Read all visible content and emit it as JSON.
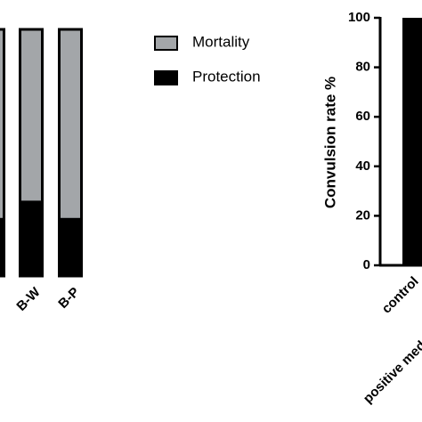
{
  "chart_data": [
    {
      "type": "stacked_bar",
      "categories": [
        null,
        "B-W",
        "B-P"
      ],
      "series": [
        {
          "name": "Protection",
          "color": "#000000",
          "values": [
            23,
            30,
            23
          ]
        },
        {
          "name": "Mortality",
          "color": "#a3a6a9",
          "values": [
            77,
            70,
            77
          ]
        }
      ],
      "ylim": [
        0,
        100
      ]
    },
    {
      "type": "bar",
      "y_label": "Convulsion rate %",
      "categories": [
        "control",
        "positive med"
      ],
      "values": [
        100,
        null
      ],
      "color": "#000000",
      "ylim": [
        0,
        100
      ],
      "yticks": [
        0,
        20,
        40,
        60,
        80,
        100
      ]
    }
  ]
}
